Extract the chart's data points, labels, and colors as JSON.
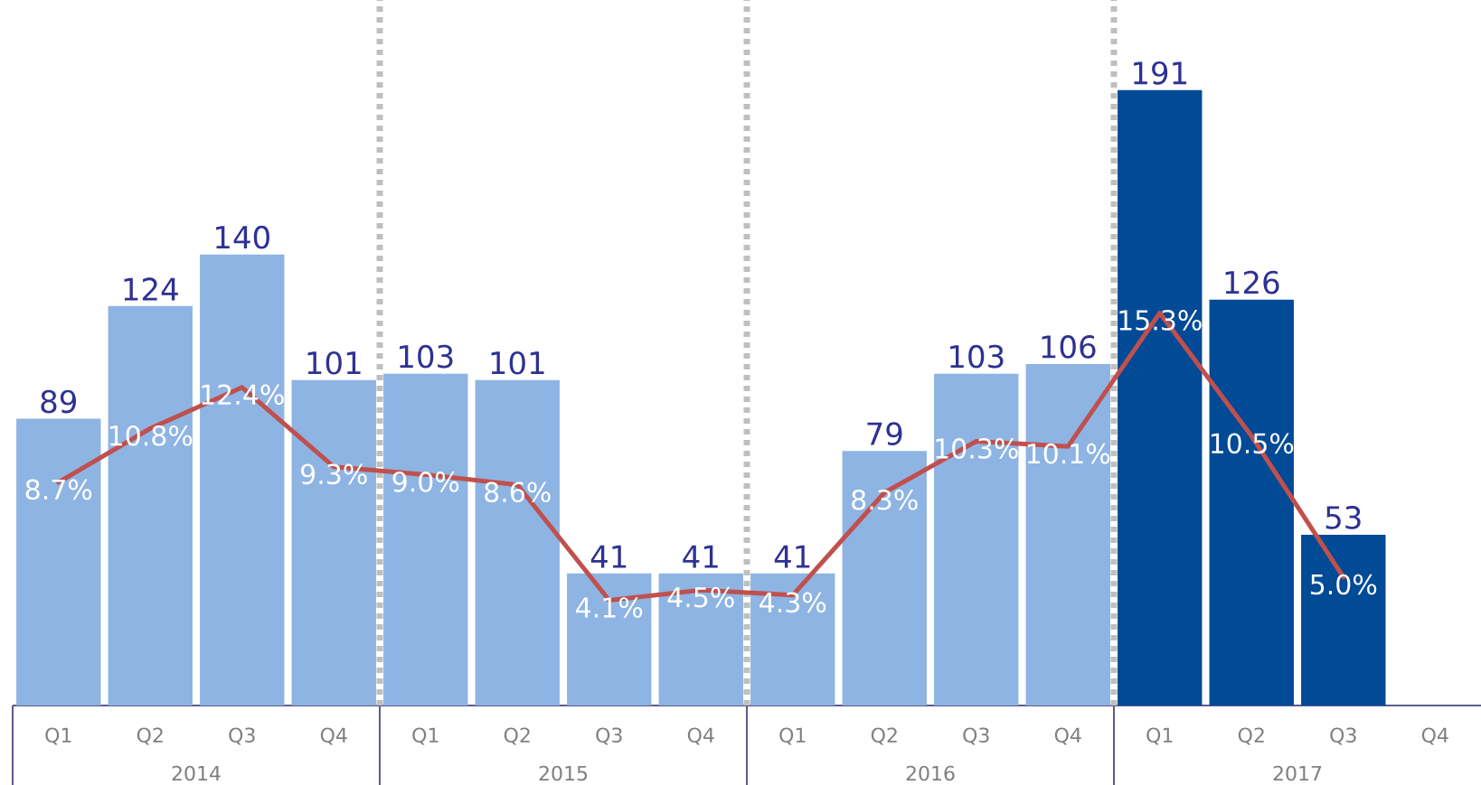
{
  "chart_data": {
    "type": "bar",
    "categories": [
      "Q1",
      "Q2",
      "Q3",
      "Q4",
      "Q1",
      "Q2",
      "Q3",
      "Q4",
      "Q1",
      "Q2",
      "Q3",
      "Q4",
      "Q1",
      "Q2",
      "Q3",
      "Q4"
    ],
    "series": [
      {
        "colors": [
          "#8eb4e3",
          "#8eb4e3",
          "#8eb4e3",
          "#8eb4e3",
          "#8eb4e3",
          "#8eb4e3",
          "#8eb4e3",
          "#8eb4e3",
          "#8eb4e3",
          "#8eb4e3",
          "#8eb4e3",
          "#8eb4e3",
          "#004a96",
          "#004a96",
          "#004a96",
          "#004a96"
        ],
        "values": [
          89,
          124,
          140,
          101,
          103,
          101,
          41,
          41,
          41,
          79,
          103,
          106,
          191,
          126,
          53,
          null
        ]
      },
      {
        "type": "line",
        "axis": "y2",
        "color": "#c0504d",
        "values": [
          8.7,
          10.8,
          12.4,
          9.3,
          9.0,
          8.6,
          4.1,
          4.5,
          4.3,
          8.3,
          10.3,
          10.1,
          15.3,
          10.5,
          5.0,
          null
        ],
        "value_labels": [
          "8.7%",
          "10.8%",
          "12.4%",
          "9.3%",
          "9.0%",
          "8.6%",
          "4.1%",
          "4.5%",
          "4.3%",
          "8.3%",
          "10.3%",
          "10.1%",
          "15.3%",
          "10.5%",
          "5.0%",
          null
        ]
      }
    ],
    "ylim": [
      0,
      219
    ],
    "y2lim": [
      0,
      27.5
    ],
    "data_labels": true,
    "annotations": [
      "2014",
      "2015",
      "2016",
      "2017"
    ]
  }
}
